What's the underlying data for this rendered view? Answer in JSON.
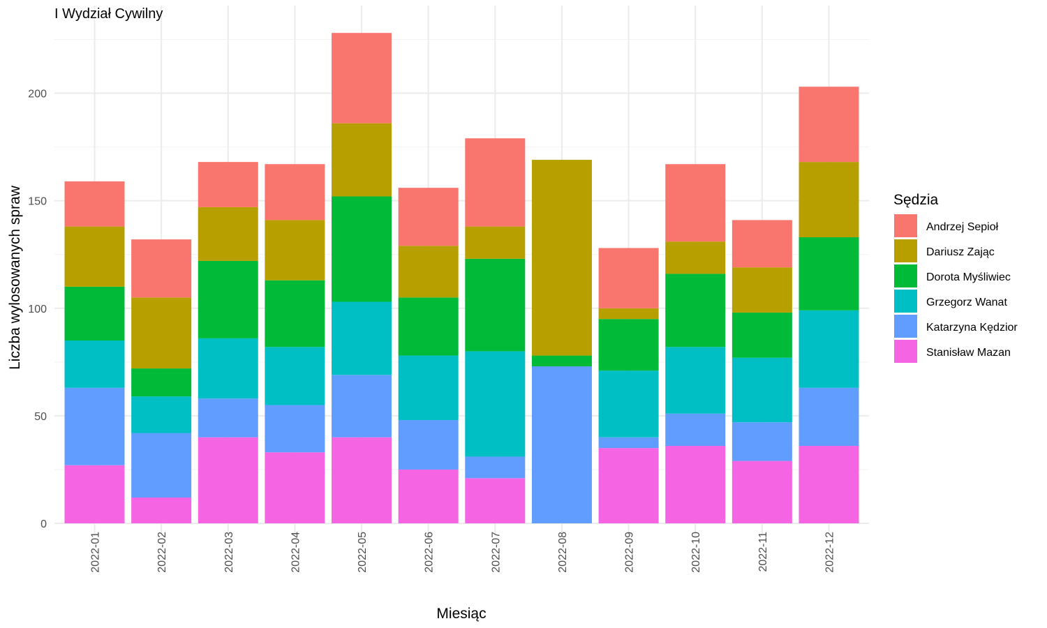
{
  "chart_data": {
    "type": "bar",
    "stacked": true,
    "title": "I Wydział Cywilny",
    "xlabel": "Miesiąc",
    "ylabel": "Liczba wylosowanych spraw",
    "legend_title": "Sędzia",
    "legend_position": "right",
    "grid": true,
    "ylim": [
      0,
      230
    ],
    "yticks": [
      0,
      50,
      100,
      150,
      200
    ],
    "categories": [
      "2022-01",
      "2022-02",
      "2022-03",
      "2022-04",
      "2022-05",
      "2022-06",
      "2022-07",
      "2022-08",
      "2022-09",
      "2022-10",
      "2022-11",
      "2022-12"
    ],
    "series": [
      {
        "name": "Stanisław Mazan",
        "color": "#F564E3",
        "values": [
          27,
          12,
          40,
          33,
          40,
          25,
          21,
          0,
          35,
          36,
          29,
          36
        ]
      },
      {
        "name": "Katarzyna Kędzior",
        "color": "#619CFF",
        "values": [
          36,
          30,
          18,
          22,
          29,
          23,
          10,
          73,
          5,
          15,
          18,
          27
        ]
      },
      {
        "name": "Grzegorz Wanat",
        "color": "#00BFC4",
        "values": [
          22,
          17,
          28,
          27,
          34,
          30,
          49,
          0,
          31,
          31,
          30,
          36
        ]
      },
      {
        "name": "Dorota Myśliwiec",
        "color": "#00BA38",
        "values": [
          25,
          13,
          36,
          31,
          49,
          27,
          43,
          5,
          24,
          34,
          21,
          34
        ]
      },
      {
        "name": "Dariusz Zając",
        "color": "#B79F00",
        "values": [
          28,
          33,
          25,
          28,
          34,
          24,
          15,
          91,
          5,
          15,
          21,
          35
        ]
      },
      {
        "name": "Andrzej Sepioł",
        "color": "#F8766D",
        "values": [
          21,
          27,
          21,
          26,
          42,
          27,
          41,
          0,
          28,
          36,
          22,
          35
        ]
      }
    ],
    "legend_order": [
      "Andrzej Sepioł",
      "Dariusz Zając",
      "Dorota Myśliwiec",
      "Grzegorz Wanat",
      "Katarzyna Kędzior",
      "Stanisław Mazan"
    ]
  }
}
